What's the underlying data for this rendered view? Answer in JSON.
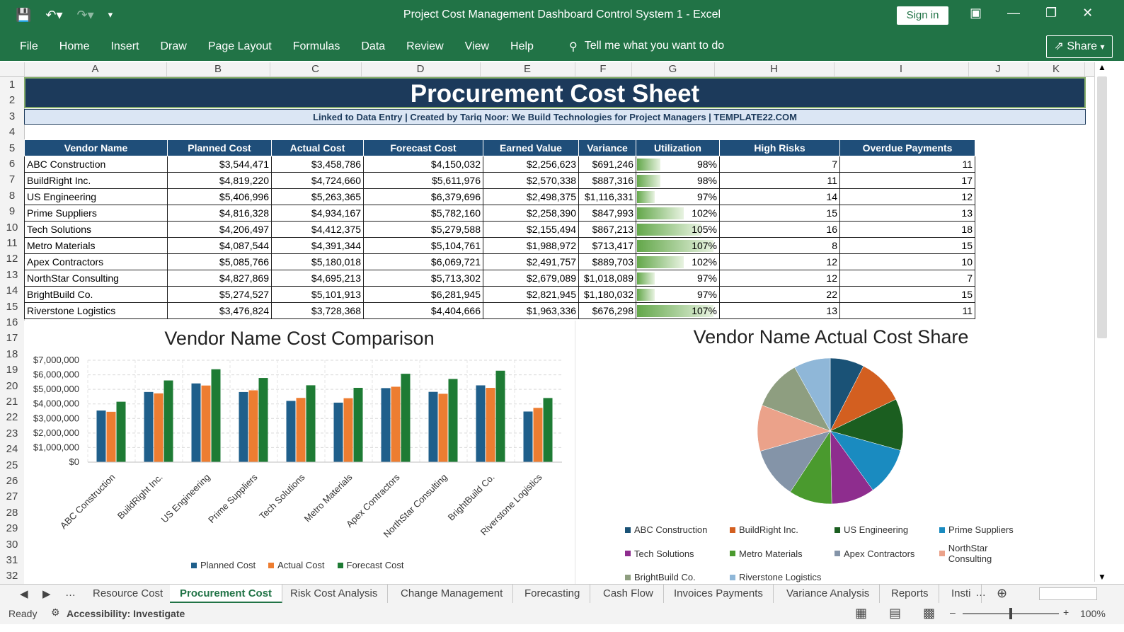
{
  "window": {
    "title": "Project Cost Management Dashboard Control System 1  -  Excel",
    "sign_in": "Sign in",
    "share": "Share"
  },
  "ribbon": {
    "tabs": [
      "File",
      "Home",
      "Insert",
      "Draw",
      "Page Layout",
      "Formulas",
      "Data",
      "Review",
      "View",
      "Help"
    ],
    "tell_me": "Tell me what you want to do"
  },
  "columns": [
    "A",
    "B",
    "C",
    "D",
    "E",
    "F",
    "G",
    "H",
    "I",
    "J",
    "K"
  ],
  "rows": [
    "1",
    "2",
    "3",
    "4",
    "5",
    "6",
    "7",
    "8",
    "9",
    "10",
    "11",
    "12",
    "13",
    "14",
    "15",
    "16",
    "17",
    "18",
    "19",
    "20",
    "21",
    "22",
    "23",
    "24",
    "25",
    "26",
    "27",
    "28",
    "29",
    "30",
    "31",
    "32"
  ],
  "sheet": {
    "title": "Procurement Cost Sheet",
    "subtitle": "Linked to Data Entry | Created by Tariq Noor: We Build Technologies for Project Managers | TEMPLATE22.COM",
    "headers": [
      "Vendor Name",
      "Planned Cost",
      "Actual Cost",
      "Forecast Cost",
      "Earned Value",
      "Variance",
      "Utilization",
      "High Risks",
      "Overdue Payments"
    ],
    "rows": [
      {
        "vendor": "ABC Construction",
        "planned": "$3,544,471",
        "actual": "$3,458,786",
        "forecast": "$4,150,032",
        "earned": "$2,256,623",
        "variance": "$691,246",
        "utilization": "98%",
        "util_pct": 98,
        "risks": "7",
        "overdue": "11"
      },
      {
        "vendor": "BuildRight Inc.",
        "planned": "$4,819,220",
        "actual": "$4,724,660",
        "forecast": "$5,611,976",
        "earned": "$2,570,338",
        "variance": "$887,316",
        "utilization": "98%",
        "util_pct": 98,
        "risks": "11",
        "overdue": "17"
      },
      {
        "vendor": "US Engineering",
        "planned": "$5,406,996",
        "actual": "$5,263,365",
        "forecast": "$6,379,696",
        "earned": "$2,498,375",
        "variance": "$1,116,331",
        "utilization": "97%",
        "util_pct": 97,
        "risks": "14",
        "overdue": "12"
      },
      {
        "vendor": "Prime Suppliers",
        "planned": "$4,816,328",
        "actual": "$4,934,167",
        "forecast": "$5,782,160",
        "earned": "$2,258,390",
        "variance": "$847,993",
        "utilization": "102%",
        "util_pct": 102,
        "risks": "15",
        "overdue": "13"
      },
      {
        "vendor": "Tech Solutions",
        "planned": "$4,206,497",
        "actual": "$4,412,375",
        "forecast": "$5,279,588",
        "earned": "$2,155,494",
        "variance": "$867,213",
        "utilization": "105%",
        "util_pct": 105,
        "risks": "16",
        "overdue": "18"
      },
      {
        "vendor": "Metro Materials",
        "planned": "$4,087,544",
        "actual": "$4,391,344",
        "forecast": "$5,104,761",
        "earned": "$1,988,972",
        "variance": "$713,417",
        "utilization": "107%",
        "util_pct": 107,
        "risks": "8",
        "overdue": "15"
      },
      {
        "vendor": "Apex Contractors",
        "planned": "$5,085,766",
        "actual": "$5,180,018",
        "forecast": "$6,069,721",
        "earned": "$2,491,757",
        "variance": "$889,703",
        "utilization": "102%",
        "util_pct": 102,
        "risks": "12",
        "overdue": "10"
      },
      {
        "vendor": "NorthStar Consulting",
        "planned": "$4,827,869",
        "actual": "$4,695,213",
        "forecast": "$5,713,302",
        "earned": "$2,679,089",
        "variance": "$1,018,089",
        "utilization": "97%",
        "util_pct": 97,
        "risks": "12",
        "overdue": "7"
      },
      {
        "vendor": "BrightBuild Co.",
        "planned": "$5,274,527",
        "actual": "$5,101,913",
        "forecast": "$6,281,945",
        "earned": "$2,821,945",
        "variance": "$1,180,032",
        "utilization": "97%",
        "util_pct": 97,
        "risks": "22",
        "overdue": "15"
      },
      {
        "vendor": "Riverstone Logistics",
        "planned": "$3,476,824",
        "actual": "$3,728,368",
        "forecast": "$4,404,666",
        "earned": "$1,963,336",
        "variance": "$676,298",
        "utilization": "107%",
        "util_pct": 107,
        "risks": "13",
        "overdue": "11"
      }
    ]
  },
  "chart_data": [
    {
      "type": "bar",
      "title": "Vendor Name Cost Comparison",
      "categories": [
        "ABC Construction",
        "BuildRight Inc.",
        "US Engineering",
        "Prime Suppliers",
        "Tech Solutions",
        "Metro Materials",
        "Apex Contractors",
        "NorthStar Consulting",
        "BrightBuild Co.",
        "Riverstone Logistics"
      ],
      "series": [
        {
          "name": "Planned Cost",
          "color": "#1f5f8b",
          "values": [
            3544471,
            4819220,
            5406996,
            4816328,
            4206497,
            4087544,
            5085766,
            4827869,
            5274527,
            3476824
          ]
        },
        {
          "name": "Actual Cost",
          "color": "#ed7d31",
          "values": [
            3458786,
            4724660,
            5263365,
            4934167,
            4412375,
            4391344,
            5180018,
            4695213,
            5101913,
            3728368
          ]
        },
        {
          "name": "Forecast Cost",
          "color": "#1e7b34",
          "values": [
            4150032,
            5611976,
            6379696,
            5782160,
            5279588,
            5104761,
            6069721,
            5713302,
            6281945,
            4404666
          ]
        }
      ],
      "ylim": [
        0,
        7000000
      ],
      "yticks": [
        "$0",
        "$1,000,000",
        "$2,000,000",
        "$3,000,000",
        "$4,000,000",
        "$5,000,000",
        "$6,000,000",
        "$7,000,000"
      ],
      "legend": "bottom",
      "grid": true
    },
    {
      "type": "pie",
      "title": "Vendor Name Actual Cost Share",
      "categories": [
        "ABC Construction",
        "BuildRight Inc.",
        "US Engineering",
        "Prime Suppliers",
        "Tech Solutions",
        "Metro Materials",
        "Apex Contractors",
        "NorthStar Consulting",
        "BrightBuild Co.",
        "Riverstone Logistics"
      ],
      "values": [
        3458786,
        4724660,
        5263365,
        4934167,
        4412375,
        4391344,
        5180018,
        4695213,
        5101913,
        3728368
      ],
      "colors": [
        "#1a5276",
        "#d35f20",
        "#1b5e20",
        "#1a8bc0",
        "#8e2d8e",
        "#4a9a2e",
        "#8494a8",
        "#eba28a",
        "#8e9e80",
        "#8fb7d8"
      ],
      "legend": "bottom"
    }
  ],
  "sheet_tabs": [
    "Resource Cost",
    "Procurement Cost",
    "Risk Cost Analysis",
    "Change Management",
    "Forecasting",
    "Cash Flow",
    "Invoices Payments",
    "Variance Analysis",
    "Reports",
    "Insti"
  ],
  "active_tab": "Procurement Cost",
  "status": {
    "ready": "Ready",
    "accessibility": "Accessibility: Investigate",
    "zoom": "100%"
  }
}
